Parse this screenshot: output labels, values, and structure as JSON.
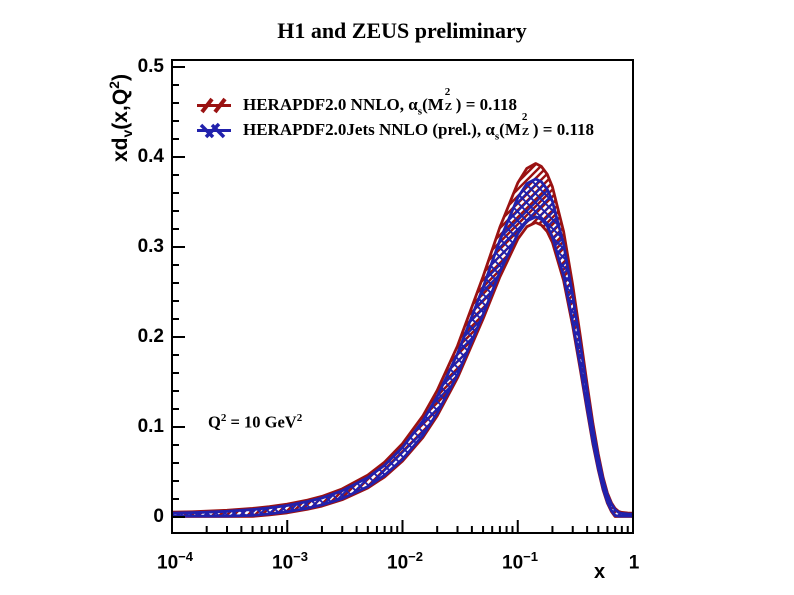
{
  "title": "H1 and ZEUS preliminary",
  "colors": {
    "red": "#9a1212",
    "blue": "#2121ac",
    "axis": "#000000",
    "background": "#ffffff"
  },
  "axes": {
    "x": {
      "title": "x",
      "scale": "log",
      "ticks": [
        {
          "base": "10",
          "exp": "−4"
        },
        {
          "base": "10",
          "exp": "−3"
        },
        {
          "base": "10",
          "exp": "−2"
        },
        {
          "base": "10",
          "exp": "−1"
        },
        {
          "base": "1",
          "exp": ""
        }
      ]
    },
    "y": {
      "title_parts": {
        "p1": "xd",
        "sub": "v",
        "p2": "(x,Q",
        "sup": "2",
        "p3": ")"
      },
      "ticks": [
        "0",
        "0.1",
        "0.2",
        "0.3",
        "0.4",
        "0.5"
      ]
    }
  },
  "legend": {
    "entries": [
      {
        "marker": "red-diagonal-hatch",
        "text_prefix": "HERAPDF2.0 NNLO, ",
        "alpha": "α",
        "alpha_sub": "s",
        "paren_open": "(M",
        "m_sup": "2",
        "m_sub": "Z",
        "paren_close": ") = 0.118"
      },
      {
        "marker": "blue-cross-hatch",
        "text_prefix": "HERAPDF2.0Jets NNLO (prel.), ",
        "alpha": "α",
        "alpha_sub": "s",
        "paren_open": "(M",
        "m_sup": "2",
        "m_sub": "Z",
        "paren_close": ") = 0.118"
      }
    ]
  },
  "annotation": {
    "q2_p1": "Q",
    "q2_sup1": "2",
    "q2_p2": " = 10 GeV",
    "q2_sup2": "2"
  },
  "chart_data": {
    "type": "line",
    "title": "H1 and ZEUS preliminary",
    "xlabel": "x",
    "ylabel": "xdv(x,Q2)",
    "x_scale": "log",
    "xlim": [
      0.0001,
      1
    ],
    "ylim": [
      0,
      0.5
    ],
    "grid": false,
    "legend_position": "top-left-inside",
    "annotations": [
      "Q2 = 10 GeV2"
    ],
    "x": [
      0.0001,
      0.00015,
      0.0002,
      0.0003,
      0.0005,
      0.0007,
      0.001,
      0.0015,
      0.002,
      0.003,
      0.005,
      0.007,
      0.01,
      0.015,
      0.02,
      0.03,
      0.05,
      0.07,
      0.1,
      0.12,
      0.143,
      0.16,
      0.18,
      0.2,
      0.25,
      0.3,
      0.35,
      0.4,
      0.45,
      0.5,
      0.55,
      0.6,
      0.65,
      0.7,
      0.75,
      0.8,
      0.9,
      1.0
    ],
    "series": [
      {
        "name": "HERAPDF2.0 NNLO, alpha_s(MZ2) = 0.118",
        "color": "#9a1212",
        "hatch": "diagonal",
        "band": true,
        "center": [
          0.0012,
          0.0017,
          0.0022,
          0.0032,
          0.0051,
          0.0069,
          0.0095,
          0.0137,
          0.0175,
          0.0252,
          0.0394,
          0.0528,
          0.0718,
          0.1002,
          0.1266,
          0.1723,
          0.2437,
          0.2944,
          0.34,
          0.355,
          0.36,
          0.357,
          0.349,
          0.336,
          0.29,
          0.235,
          0.181,
          0.133,
          0.092,
          0.061,
          0.037,
          0.021,
          0.011,
          0.005,
          0.002,
          0.001,
          0.0004,
          0.0002
        ],
        "upper": [
          0.0053,
          0.0058,
          0.0064,
          0.0075,
          0.0095,
          0.0115,
          0.0143,
          0.0188,
          0.0229,
          0.0312,
          0.0466,
          0.061,
          0.0815,
          0.1122,
          0.1407,
          0.1901,
          0.2672,
          0.322,
          0.3712,
          0.3874,
          0.3928,
          0.3896,
          0.3809,
          0.3669,
          0.3172,
          0.2578,
          0.1995,
          0.1476,
          0.1034,
          0.0699,
          0.044,
          0.0267,
          0.0159,
          0.0094,
          0.0062,
          0.0051,
          0.0044,
          0.0042
        ],
        "lower": [
          0.0006,
          0.0006,
          0.0006,
          0.0006,
          0.0007,
          0.0023,
          0.0047,
          0.0086,
          0.0121,
          0.0192,
          0.0322,
          0.0446,
          0.0621,
          0.0882,
          0.1125,
          0.1545,
          0.2202,
          0.2668,
          0.3088,
          0.3226,
          0.3272,
          0.3244,
          0.3171,
          0.3051,
          0.2628,
          0.2122,
          0.1625,
          0.1184,
          0.0806,
          0.0521,
          0.03,
          0.0153,
          0.0061,
          0.0006,
          0.0006,
          0.0006,
          0.0006,
          0.0006
        ]
      },
      {
        "name": "HERAPDF2.0Jets NNLO (prel.), alpha_s(MZ2) = 0.118",
        "color": "#2121ac",
        "hatch": "cross",
        "band": true,
        "center": [
          0.0012,
          0.0017,
          0.0022,
          0.0031,
          0.005,
          0.0068,
          0.0093,
          0.0134,
          0.0172,
          0.0247,
          0.0386,
          0.0517,
          0.0704,
          0.0982,
          0.1241,
          0.1689,
          0.2388,
          0.2885,
          0.3332,
          0.3479,
          0.3528,
          0.3499,
          0.342,
          0.3293,
          0.2842,
          0.2303,
          0.1774,
          0.1303,
          0.0902,
          0.0598,
          0.0363,
          0.0206,
          0.0108,
          0.0049,
          0.002,
          0.001,
          0.0004,
          0.0002
        ],
        "upper": [
          0.0042,
          0.0048,
          0.0053,
          0.0063,
          0.0083,
          0.0101,
          0.0128,
          0.0172,
          0.0211,
          0.0291,
          0.0438,
          0.0576,
          0.0773,
          0.1067,
          0.134,
          0.1813,
          0.2552,
          0.3077,
          0.3549,
          0.3704,
          0.3756,
          0.3725,
          0.3642,
          0.3508,
          0.3032,
          0.2462,
          0.1903,
          0.1406,
          0.0982,
          0.0661,
          0.0413,
          0.0247,
          0.0144,
          0.0082,
          0.0051,
          0.004,
          0.0034,
          0.0032
        ],
        "lower": [
          0.001,
          0.001,
          0.001,
          0.001,
          0.0018,
          0.0035,
          0.0059,
          0.0098,
          0.0134,
          0.0206,
          0.0338,
          0.0464,
          0.0641,
          0.0907,
          0.1154,
          0.1581,
          0.2249,
          0.2723,
          0.3149,
          0.3289,
          0.3336,
          0.3308,
          0.3233,
          0.3112,
          0.2682,
          0.2167,
          0.1662,
          0.1214,
          0.083,
          0.054,
          0.0316,
          0.0166,
          0.0073,
          0.0017,
          0.001,
          0.001,
          0.001,
          0.001
        ]
      }
    ]
  }
}
